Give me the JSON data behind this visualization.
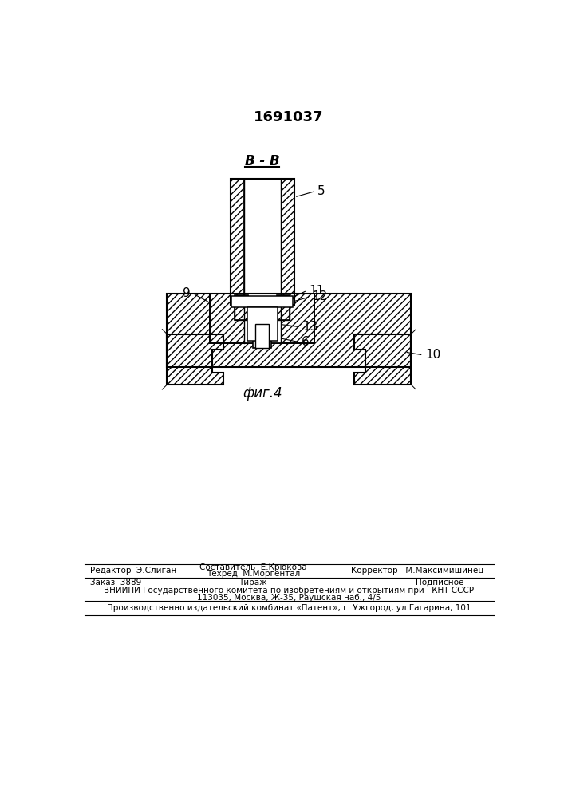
{
  "title": "1691037",
  "section_label": "В - В",
  "fig_label": "фиг.4",
  "footer_line1_left": "Редактор  Э.Слиган",
  "footer_line1_center_top": "Составитель  Е.Крюкова",
  "footer_line1_center_bot": "Техред  М.Моргентал",
  "footer_line1_right": "Корректор   М.Максимишинец",
  "footer_line2_left": "Заказ  3889",
  "footer_line2_center": "Тираж",
  "footer_line2_right": "Подписное",
  "footer_line3": "ВНИИПИ Государственного комитета по изобретениям и открытиям при ГКНТ СССР",
  "footer_line4": "113035, Москва, Ж-35, Раушская наб., 4/5",
  "footer_line5": "Производственно издательский комбинат «Патент», г. Ужгород, ул.Гагарина, 101",
  "line_color": "#000000"
}
